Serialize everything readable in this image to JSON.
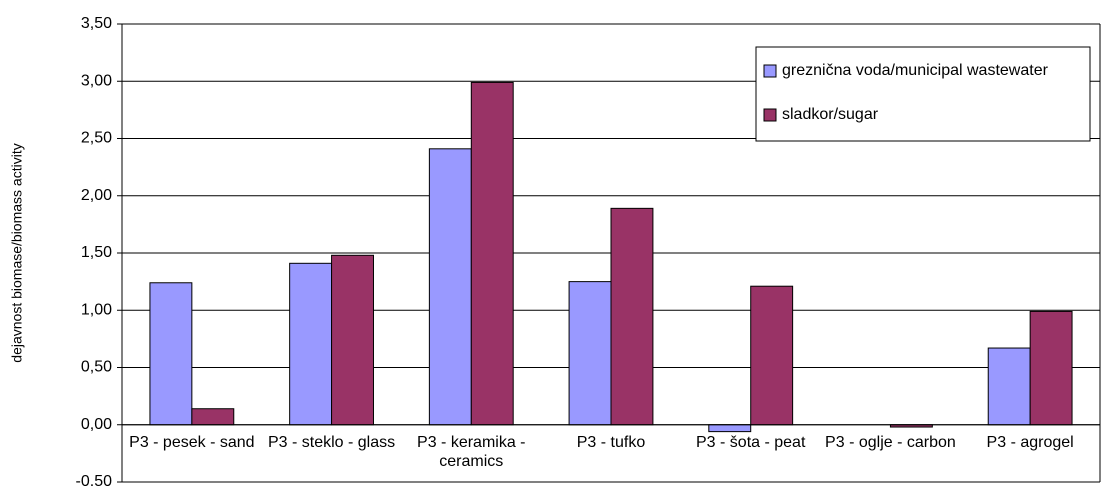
{
  "chart_data": {
    "type": "bar",
    "y_label": "dejavnost biomase/biomass activity",
    "categories": [
      "P3 - pesek - sand",
      "P3 - steklo - glass",
      "P3 - keramika - ceramics",
      "P3 - tufko",
      "P3 - šota - peat",
      "P3 - oglje - carbon",
      "P3 - agrogel"
    ],
    "series": [
      {
        "name": "greznična voda/municipal wastewater",
        "color": "#9999ff",
        "values": [
          1.24,
          1.41,
          2.41,
          1.25,
          -0.06,
          null,
          0.67
        ]
      },
      {
        "name": "sladkor/sugar",
        "color": "#993366",
        "values": [
          0.14,
          1.48,
          2.99,
          1.89,
          1.21,
          -0.02,
          0.99
        ]
      }
    ],
    "ylim": [
      -0.5,
      3.5
    ],
    "yticks": [
      {
        "value": -0.5,
        "label": "-0.50"
      },
      {
        "value": 0,
        "label": "0,00"
      },
      {
        "value": 0.5,
        "label": "0,50"
      },
      {
        "value": 1,
        "label": "1,00"
      },
      {
        "value": 1.5,
        "label": "1,50"
      },
      {
        "value": 2,
        "label": "2,00"
      },
      {
        "value": 2.5,
        "label": "2,50"
      },
      {
        "value": 3,
        "label": "3,00"
      },
      {
        "value": 3.5,
        "label": "3,50"
      }
    ],
    "grid": true,
    "legend": "upper right"
  }
}
